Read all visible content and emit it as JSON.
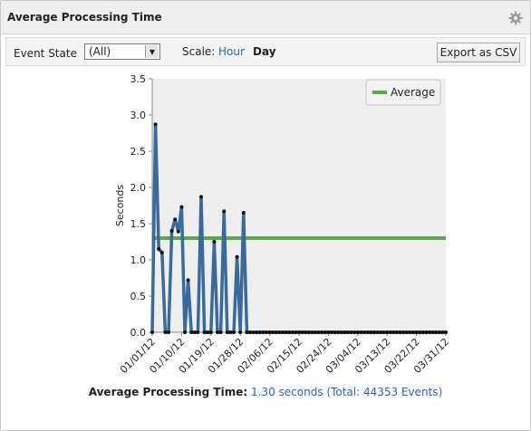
{
  "panel": {
    "title": "Average Processing Time",
    "settings_icon": "gear-icon"
  },
  "toolbar": {
    "event_state_label": "Event State",
    "event_state_value": "(All)",
    "scale_label": "Scale:",
    "scale_hour": "Hour",
    "scale_day": "Day",
    "export_label": "Export as CSV"
  },
  "colors": {
    "series_line": "#3a6a9c",
    "average_line": "#5aab45",
    "plot_bg": "#eeeeee",
    "link": "#2a66b8"
  },
  "chart_data": {
    "type": "line",
    "ylabel": "Seconds",
    "ylim": [
      0,
      3.5
    ],
    "y_ticks": [
      "0.0",
      "0.5",
      "1.0",
      "1.5",
      "2.0",
      "2.5",
      "3.0",
      "3.5"
    ],
    "x_range": [
      "2012-01-01",
      "2012-03-31"
    ],
    "x_ticks": [
      {
        "date": "2012-01-01",
        "label": "01/01/12"
      },
      {
        "date": "2012-01-10",
        "label": "01/10/12"
      },
      {
        "date": "2012-01-19",
        "label": "01/19/12"
      },
      {
        "date": "2012-01-28",
        "label": "01/28/12"
      },
      {
        "date": "2012-02-06",
        "label": "02/06/12"
      },
      {
        "date": "2012-02-15",
        "label": "02/15/12"
      },
      {
        "date": "2012-02-24",
        "label": "02/24/12"
      },
      {
        "date": "2012-03-04",
        "label": "03/04/12"
      },
      {
        "date": "2012-03-13",
        "label": "03/13/12"
      },
      {
        "date": "2012-03-22",
        "label": "03/22/12"
      },
      {
        "date": "2012-03-31",
        "label": "03/31/12"
      }
    ],
    "legend": {
      "label": "Average",
      "position": "top-right"
    },
    "average": 1.3,
    "grid": false,
    "series": [
      {
        "x": [
          "2012-01-01",
          "2012-01-02",
          "2012-01-03",
          "2012-01-04",
          "2012-01-05",
          "2012-01-06",
          "2012-01-07",
          "2012-01-08",
          "2012-01-09",
          "2012-01-10",
          "2012-01-11",
          "2012-01-12",
          "2012-01-13",
          "2012-01-14",
          "2012-01-15",
          "2012-01-16",
          "2012-01-17",
          "2012-01-18",
          "2012-01-19",
          "2012-01-20",
          "2012-01-21",
          "2012-01-22",
          "2012-01-23",
          "2012-01-24",
          "2012-01-25",
          "2012-01-26",
          "2012-01-27",
          "2012-01-28",
          "2012-01-29",
          "2012-01-30",
          "2012-01-31",
          "2012-02-01",
          "2012-02-02",
          "2012-02-03",
          "2012-02-04",
          "2012-02-05",
          "2012-02-06",
          "2012-02-07",
          "2012-02-08",
          "2012-02-09",
          "2012-02-10",
          "2012-02-11",
          "2012-02-12",
          "2012-02-13",
          "2012-02-14",
          "2012-02-15",
          "2012-02-16",
          "2012-02-17",
          "2012-02-18",
          "2012-02-19",
          "2012-02-20",
          "2012-02-21",
          "2012-02-22",
          "2012-02-23",
          "2012-02-24",
          "2012-02-25",
          "2012-02-26",
          "2012-02-27",
          "2012-02-28",
          "2012-02-29",
          "2012-03-01",
          "2012-03-02",
          "2012-03-03",
          "2012-03-04",
          "2012-03-05",
          "2012-03-06",
          "2012-03-07",
          "2012-03-08",
          "2012-03-09",
          "2012-03-10",
          "2012-03-11",
          "2012-03-12",
          "2012-03-13",
          "2012-03-14",
          "2012-03-15",
          "2012-03-16",
          "2012-03-17",
          "2012-03-18",
          "2012-03-19",
          "2012-03-20",
          "2012-03-21",
          "2012-03-22",
          "2012-03-23",
          "2012-03-24",
          "2012-03-25",
          "2012-03-26",
          "2012-03-27",
          "2012-03-28",
          "2012-03-29",
          "2012-03-30",
          "2012-03-31"
        ],
        "y": [
          0,
          2.87,
          1.15,
          1.1,
          0,
          0,
          1.4,
          1.56,
          1.39,
          1.73,
          0,
          0.72,
          0,
          0,
          0,
          1.87,
          0,
          0,
          0,
          1.25,
          0,
          0,
          1.67,
          0,
          0,
          0,
          1.04,
          0,
          1.65,
          0,
          0,
          0,
          0,
          0,
          0,
          0,
          0,
          0,
          0,
          0,
          0,
          0,
          0,
          0,
          0,
          0,
          0,
          0,
          0,
          0,
          0,
          0,
          0,
          0,
          0,
          0,
          0,
          0,
          0,
          0,
          0,
          0,
          0,
          0,
          0,
          0,
          0,
          0,
          0,
          0,
          0,
          0,
          0,
          0,
          0,
          0,
          0,
          0,
          0,
          0,
          0,
          0,
          0,
          0,
          0,
          0,
          0,
          0,
          0,
          0,
          0
        ]
      }
    ]
  },
  "footer": {
    "label": "Average Processing Time:",
    "value": "1.30 seconds (Total: 44353 Events)"
  }
}
